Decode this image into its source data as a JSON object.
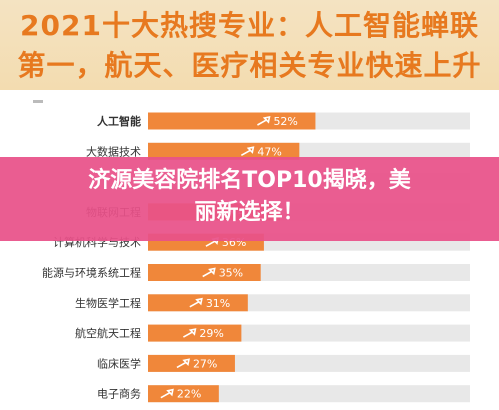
{
  "header": {
    "title_line1": "2021十大热搜专业：人工智能蝉联",
    "title_line2": "第一，航天、医疗相关专业快速上升"
  },
  "overlay": {
    "line1": "济源美容院排名TOP10揭晓，美",
    "line2": "丽新选择！"
  },
  "colors": {
    "bar": "#f0873a",
    "track": "#e8e8e8",
    "banner": "#e85189",
    "title": "#e7791f"
  },
  "chart_data": {
    "type": "bar",
    "orientation": "horizontal",
    "categories": [
      "人工智能",
      "大数据技术",
      "",
      "物联网工程",
      "计算机科学与技术",
      "能源与环境系统工程",
      "生物医学工程",
      "航空航天工程",
      "临床医学",
      "电子商务"
    ],
    "values": [
      52,
      47,
      null,
      41,
      36,
      35,
      31,
      29,
      27,
      22
    ],
    "value_labels": [
      "52%",
      "47%",
      "",
      "41%",
      "36%",
      "35%",
      "31%",
      "29%",
      "27%",
      "22%"
    ],
    "xlim": [
      0,
      100
    ],
    "title": "",
    "xlabel": "",
    "ylabel": ""
  }
}
